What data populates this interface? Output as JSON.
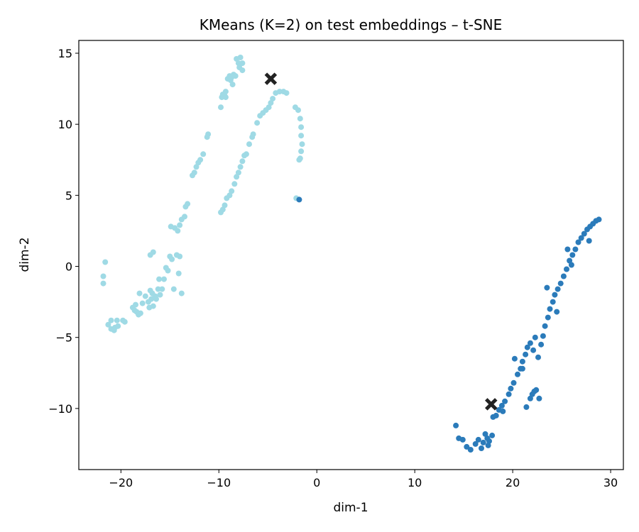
{
  "chart_data": {
    "type": "scatter",
    "title": "KMeans (K=2) on test embeddings – t-SNE",
    "xlabel": "dim-1",
    "ylabel": "dim-2",
    "xlim": [
      -24.3,
      31.3
    ],
    "ylim": [
      -14.3,
      15.9
    ],
    "xticks": [
      -20,
      -10,
      0,
      10,
      20,
      30
    ],
    "xtick_labels": [
      "−20",
      "−10",
      "0",
      "10",
      "20",
      "30"
    ],
    "yticks": [
      -10,
      -5,
      0,
      5,
      10,
      15
    ],
    "ytick_labels": [
      "−10",
      "−5",
      "0",
      "5",
      "10",
      "15"
    ],
    "grid": false,
    "colors": {
      "cluster_0": "#9fdae5",
      "cluster_1": "#2b7bba",
      "centroid": "#222222"
    },
    "series": [
      {
        "cluster": 0,
        "points": [
          [
            -21.8,
            -0.7
          ],
          [
            -21.8,
            -1.2
          ],
          [
            -21.6,
            0.3
          ],
          [
            -21.3,
            -4.1
          ],
          [
            -21.0,
            -4.4
          ],
          [
            -21.0,
            -3.8
          ],
          [
            -20.7,
            -4.5
          ],
          [
            -20.6,
            -4.3
          ],
          [
            -20.4,
            -3.8
          ],
          [
            -20.3,
            -4.2
          ],
          [
            -19.8,
            -3.8
          ],
          [
            -19.6,
            -3.9
          ],
          [
            -18.8,
            -2.9
          ],
          [
            -18.6,
            -3.1
          ],
          [
            -18.5,
            -2.7
          ],
          [
            -18.4,
            -3.2
          ],
          [
            -18.2,
            -3.4
          ],
          [
            -18.0,
            -3.3
          ],
          [
            -17.8,
            -2.6
          ],
          [
            -17.5,
            -2.1
          ],
          [
            -17.2,
            -2.5
          ],
          [
            -17.1,
            -2.9
          ],
          [
            -17.0,
            -1.7
          ],
          [
            -16.9,
            -2.3
          ],
          [
            -16.8,
            -1.9
          ],
          [
            -16.7,
            -2.8
          ],
          [
            -16.5,
            -2.1
          ],
          [
            -16.4,
            -2.3
          ],
          [
            -16.2,
            -1.6
          ],
          [
            -16.0,
            -2.0
          ],
          [
            -15.8,
            -1.6
          ],
          [
            -15.6,
            -0.9
          ],
          [
            -15.2,
            -0.3
          ],
          [
            -15.0,
            0.7
          ],
          [
            -14.8,
            0.5
          ],
          [
            -14.6,
            -1.6
          ],
          [
            -14.3,
            0.8
          ],
          [
            -14.1,
            -0.5
          ],
          [
            -14.0,
            0.7
          ],
          [
            -13.8,
            -1.9
          ],
          [
            -18.1,
            -1.9
          ],
          [
            -17.0,
            0.8
          ],
          [
            -16.7,
            1.0
          ],
          [
            -16.1,
            -0.9
          ],
          [
            -15.4,
            -0.1
          ],
          [
            -14.9,
            2.8
          ],
          [
            -14.5,
            2.7
          ],
          [
            -14.2,
            2.5
          ],
          [
            -14.0,
            2.9
          ],
          [
            -13.8,
            3.3
          ],
          [
            -13.5,
            3.5
          ],
          [
            -13.4,
            4.2
          ],
          [
            -13.2,
            4.4
          ],
          [
            -12.7,
            6.4
          ],
          [
            -12.5,
            6.6
          ],
          [
            -12.3,
            7.0
          ],
          [
            -12.1,
            7.3
          ],
          [
            -11.9,
            7.5
          ],
          [
            -11.6,
            7.9
          ],
          [
            -11.2,
            9.1
          ],
          [
            -11.1,
            9.3
          ],
          [
            -9.8,
            11.2
          ],
          [
            -9.7,
            11.9
          ],
          [
            -9.6,
            12.1
          ],
          [
            -9.4,
            12.0
          ],
          [
            -9.3,
            11.9
          ],
          [
            -9.3,
            12.3
          ],
          [
            -9.1,
            13.2
          ],
          [
            -8.9,
            13.4
          ],
          [
            -8.8,
            13.1
          ],
          [
            -8.7,
            13.3
          ],
          [
            -8.6,
            12.8
          ],
          [
            -8.5,
            13.5
          ],
          [
            -8.3,
            13.4
          ],
          [
            -8.2,
            14.6
          ],
          [
            -8.0,
            14.3
          ],
          [
            -7.9,
            14.0
          ],
          [
            -7.8,
            14.7
          ],
          [
            -7.6,
            14.3
          ],
          [
            -7.6,
            13.8
          ],
          [
            -9.8,
            3.8
          ],
          [
            -9.6,
            4.0
          ],
          [
            -9.4,
            4.3
          ],
          [
            -9.2,
            4.8
          ],
          [
            -8.9,
            5.0
          ],
          [
            -8.7,
            5.3
          ],
          [
            -8.4,
            5.8
          ],
          [
            -8.2,
            6.3
          ],
          [
            -8.0,
            6.6
          ],
          [
            -7.8,
            7.0
          ],
          [
            -7.6,
            7.4
          ],
          [
            -7.4,
            7.8
          ],
          [
            -7.2,
            7.9
          ],
          [
            -6.9,
            8.6
          ],
          [
            -6.6,
            9.1
          ],
          [
            -6.5,
            9.3
          ],
          [
            -6.1,
            10.1
          ],
          [
            -5.8,
            10.6
          ],
          [
            -5.5,
            10.8
          ],
          [
            -5.2,
            11.0
          ],
          [
            -4.9,
            11.2
          ],
          [
            -4.7,
            11.5
          ],
          [
            -4.5,
            11.8
          ],
          [
            -4.2,
            12.2
          ],
          [
            -3.8,
            12.3
          ],
          [
            -3.4,
            12.3
          ],
          [
            -3.1,
            12.2
          ],
          [
            -2.2,
            11.2
          ],
          [
            -1.9,
            11.0
          ],
          [
            -1.7,
            10.4
          ],
          [
            -1.6,
            9.8
          ],
          [
            -1.6,
            9.2
          ],
          [
            -1.5,
            8.6
          ],
          [
            -1.6,
            8.1
          ],
          [
            -1.7,
            7.6
          ],
          [
            -1.8,
            7.5
          ],
          [
            -2.1,
            4.8
          ]
        ]
      },
      {
        "cluster": 1,
        "points": [
          [
            -1.8,
            4.7
          ],
          [
            14.2,
            -11.2
          ],
          [
            14.5,
            -12.1
          ],
          [
            14.9,
            -12.2
          ],
          [
            15.3,
            -12.7
          ],
          [
            15.7,
            -12.9
          ],
          [
            16.2,
            -12.5
          ],
          [
            16.5,
            -12.2
          ],
          [
            16.8,
            -12.8
          ],
          [
            17.0,
            -12.4
          ],
          [
            17.2,
            -11.8
          ],
          [
            17.4,
            -12.1
          ],
          [
            17.6,
            -12.3
          ],
          [
            17.9,
            -11.9
          ],
          [
            18.0,
            -10.6
          ],
          [
            18.3,
            -10.5
          ],
          [
            18.6,
            -10.1
          ],
          [
            18.9,
            -9.8
          ],
          [
            19.2,
            -9.5
          ],
          [
            19.6,
            -9.0
          ],
          [
            19.8,
            -8.6
          ],
          [
            20.1,
            -8.2
          ],
          [
            20.5,
            -7.6
          ],
          [
            20.8,
            -7.2
          ],
          [
            21.0,
            -6.7
          ],
          [
            21.3,
            -6.2
          ],
          [
            21.5,
            -5.7
          ],
          [
            21.8,
            -5.4
          ],
          [
            22.1,
            -5.9
          ],
          [
            22.3,
            -5.0
          ],
          [
            22.6,
            -6.4
          ],
          [
            22.9,
            -5.5
          ],
          [
            23.1,
            -4.9
          ],
          [
            23.3,
            -4.2
          ],
          [
            23.6,
            -3.6
          ],
          [
            23.8,
            -3.0
          ],
          [
            24.1,
            -2.5
          ],
          [
            24.3,
            -2.0
          ],
          [
            24.6,
            -1.6
          ],
          [
            24.9,
            -1.2
          ],
          [
            25.2,
            -0.7
          ],
          [
            25.5,
            -0.2
          ],
          [
            25.8,
            0.4
          ],
          [
            26.1,
            0.8
          ],
          [
            26.4,
            1.2
          ],
          [
            26.7,
            1.7
          ],
          [
            27.0,
            2.0
          ],
          [
            27.3,
            2.3
          ],
          [
            27.6,
            2.6
          ],
          [
            27.9,
            2.8
          ],
          [
            28.2,
            3.0
          ],
          [
            28.5,
            3.2
          ],
          [
            28.8,
            3.3
          ],
          [
            21.4,
            -9.9
          ],
          [
            21.8,
            -9.3
          ],
          [
            22.0,
            -9.0
          ],
          [
            22.4,
            -8.7
          ],
          [
            22.7,
            -9.3
          ],
          [
            20.2,
            -6.5
          ],
          [
            23.5,
            -1.5
          ],
          [
            24.5,
            -3.2
          ],
          [
            26.0,
            0.1
          ],
          [
            27.8,
            1.8
          ],
          [
            21.0,
            -7.2
          ],
          [
            19.0,
            -10.2
          ],
          [
            17.5,
            -12.6
          ],
          [
            22.2,
            -8.8
          ],
          [
            25.6,
            1.2
          ]
        ]
      }
    ],
    "centroids": [
      {
        "cluster": 0,
        "x": -4.7,
        "y": 13.2
      },
      {
        "cluster": 1,
        "x": 17.8,
        "y": -9.7
      }
    ]
  }
}
